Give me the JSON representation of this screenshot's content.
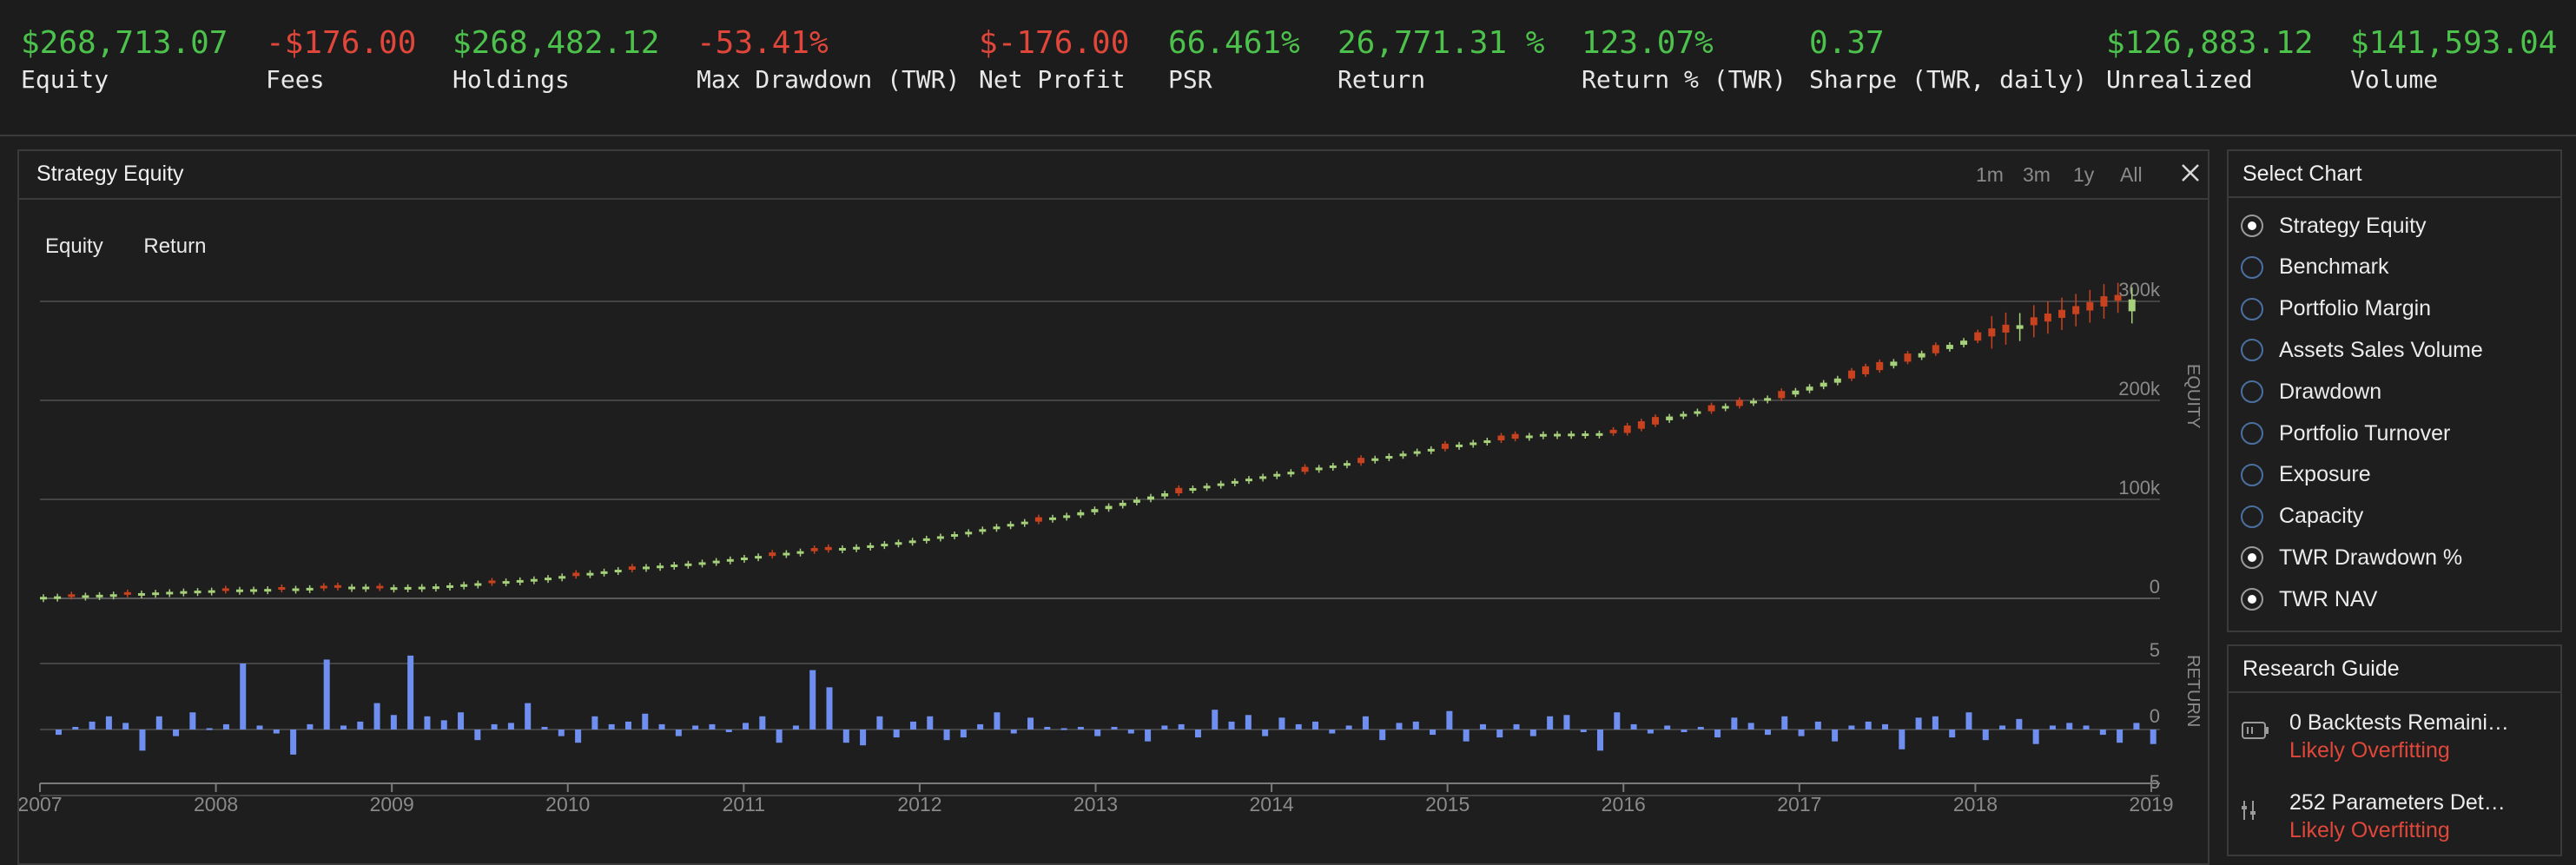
{
  "stats": [
    {
      "value": "$268,713.07",
      "label": "Equity",
      "tone": "pos"
    },
    {
      "value": "-$176.00",
      "label": "Fees",
      "tone": "neg"
    },
    {
      "value": "$268,482.12",
      "label": "Holdings",
      "tone": "pos"
    },
    {
      "value": "-53.41%",
      "label": "Max Drawdown (TWR)",
      "tone": "neg"
    },
    {
      "value": "$-176.00",
      "label": "Net Profit",
      "tone": "neg"
    },
    {
      "value": "66.461%",
      "label": "PSR",
      "tone": "pos"
    },
    {
      "value": "26,771.31 %",
      "label": "Return",
      "tone": "pos"
    },
    {
      "value": "123.07%",
      "label": "Return % (TWR)",
      "tone": "pos"
    },
    {
      "value": "0.37",
      "label": "Sharpe (TWR, daily)",
      "tone": "pos"
    },
    {
      "value": "$126,883.12",
      "label": "Unrealized",
      "tone": "pos"
    },
    {
      "value": "$141,593.04",
      "label": "Volume",
      "tone": "pos"
    }
  ],
  "panel": {
    "title": "Strategy Equity",
    "ranges": [
      "1m",
      "3m",
      "1y",
      "All"
    ],
    "series_tabs": [
      "Equity",
      "Return"
    ]
  },
  "select_chart": {
    "title": "Select Chart",
    "options": [
      {
        "label": "Strategy Equity",
        "selected": true
      },
      {
        "label": "Benchmark",
        "selected": false
      },
      {
        "label": "Portfolio Margin",
        "selected": false
      },
      {
        "label": "Assets Sales Volume",
        "selected": false
      },
      {
        "label": "Drawdown",
        "selected": false
      },
      {
        "label": "Portfolio Turnover",
        "selected": false
      },
      {
        "label": "Exposure",
        "selected": false
      },
      {
        "label": "Capacity",
        "selected": false
      },
      {
        "label": "TWR Drawdown %",
        "selected": true
      },
      {
        "label": "TWR NAV",
        "selected": true
      }
    ]
  },
  "research_guide": {
    "title": "Research Guide",
    "items": [
      {
        "text": "0 Backtests Remaini…",
        "sub": "Likely Overfitting"
      },
      {
        "text": "252 Parameters Det…",
        "sub": "Likely Overfitting"
      }
    ]
  },
  "colors": {
    "up": "#a6d07a",
    "down": "#c9421f",
    "bar": "#6f8ff0",
    "grid": "#444444",
    "axis_text": "#8a8a8a"
  },
  "chart_data": [
    {
      "type": "candlestick",
      "name": "equity",
      "y_axis_label": "EQUITY",
      "y_ticks": [
        "300k",
        "200k",
        "100k",
        "0"
      ],
      "ylim": [
        0,
        320000
      ],
      "x_ticks": [
        "2007",
        "2008",
        "2009",
        "2010",
        "2011",
        "2012",
        "2013",
        "2014",
        "2015",
        "2016",
        "2017",
        "2018",
        "2019"
      ],
      "points": [
        [
          2007.0,
          1000
        ],
        [
          2007.3,
          3000
        ],
        [
          2007.6,
          5000
        ],
        [
          2007.9,
          7500
        ],
        [
          2008.2,
          9000
        ],
        [
          2008.5,
          10000
        ],
        [
          2008.8,
          12000
        ],
        [
          2009.0,
          11000
        ],
        [
          2009.3,
          12000
        ],
        [
          2009.6,
          16000
        ],
        [
          2009.9,
          20000
        ],
        [
          2010.2,
          26000
        ],
        [
          2010.5,
          32000
        ],
        [
          2010.8,
          36000
        ],
        [
          2011.1,
          42000
        ],
        [
          2011.4,
          48000
        ],
        [
          2011.7,
          52000
        ],
        [
          2012.0,
          58000
        ],
        [
          2012.3,
          66000
        ],
        [
          2012.6,
          76000
        ],
        [
          2012.9,
          84000
        ],
        [
          2013.2,
          96000
        ],
        [
          2013.5,
          108000
        ],
        [
          2013.8,
          117000
        ],
        [
          2014.1,
          126000
        ],
        [
          2014.4,
          134000
        ],
        [
          2014.7,
          143000
        ],
        [
          2015.0,
          152000
        ],
        [
          2015.3,
          160000
        ],
        [
          2015.6,
          166000
        ],
        [
          2016.0,
          167000
        ],
        [
          2016.3,
          183000
        ],
        [
          2016.6,
          193000
        ],
        [
          2016.9,
          203000
        ],
        [
          2017.2,
          218000
        ],
        [
          2017.5,
          234000
        ],
        [
          2017.8,
          250000
        ],
        [
          2018.1,
          266000
        ],
        [
          2018.4,
          280000
        ],
        [
          2018.7,
          294000
        ],
        [
          2018.85,
          305000
        ],
        [
          2018.95,
          290000
        ]
      ]
    },
    {
      "type": "bar",
      "name": "return",
      "y_axis_label": "RETURN",
      "y_ticks": [
        "5",
        "0",
        "-5"
      ],
      "ylim": [
        -5,
        5
      ],
      "values": [
        -0.4,
        0.2,
        0.6,
        1.0,
        0.5,
        -1.6,
        1.0,
        -0.5,
        1.3,
        0.1,
        0.4,
        5.0,
        0.3,
        -0.3,
        -1.9,
        0.4,
        5.3,
        0.3,
        0.6,
        2.0,
        1.1,
        5.6,
        1.0,
        0.7,
        1.3,
        -0.8,
        0.4,
        0.5,
        2.0,
        0.2,
        -0.5,
        -1.0,
        1.0,
        0.4,
        0.6,
        1.2,
        0.4,
        -0.5,
        0.3,
        0.4,
        -0.2,
        0.5,
        1.0,
        -1.0,
        0.3,
        4.5,
        3.2,
        -1.0,
        -1.2,
        1.0,
        -0.6,
        0.6,
        1.0,
        -0.8,
        -0.6,
        0.4,
        1.3,
        -0.3,
        0.9,
        0.2,
        0.1,
        0.2,
        -0.5,
        0.2,
        -0.3,
        -0.9,
        0.3,
        0.4,
        -0.6,
        1.5,
        0.6,
        1.1,
        -0.5,
        0.9,
        0.4,
        0.6,
        -0.3,
        0.3,
        1.0,
        -0.8,
        0.5,
        0.6,
        -0.4,
        1.4,
        -0.9,
        0.4,
        -0.6,
        0.4,
        -0.5,
        1.0,
        1.1,
        -0.2,
        -1.6,
        1.3,
        0.4,
        -0.3,
        0.3,
        -0.2,
        0.2,
        -0.6,
        0.9,
        0.5,
        -0.4,
        1.0,
        -0.5,
        0.6,
        -0.9,
        0.3,
        0.6,
        0.4,
        -1.5,
        0.9,
        1.0,
        -0.6,
        1.3,
        -0.8,
        0.3,
        0.8,
        -1.1,
        0.3,
        0.5,
        0.3,
        -0.4,
        -1.0,
        0.5,
        -1.1
      ]
    }
  ]
}
